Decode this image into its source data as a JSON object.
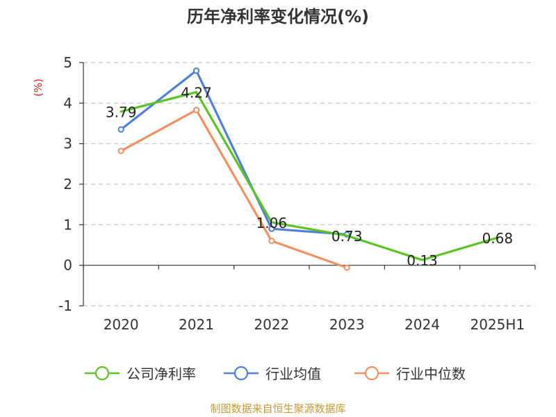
{
  "chart_data": {
    "type": "line",
    "title": "历年净利率变化情况(%)",
    "ylabel": "(%)",
    "xlabel": "",
    "categories": [
      "2020",
      "2021",
      "2022",
      "2023",
      "2024",
      "2025H1"
    ],
    "ylim": [
      -1,
      5
    ],
    "yticks": [
      -1,
      0,
      1,
      2,
      3,
      4,
      5
    ],
    "grid": true,
    "legend_position": "bottom",
    "series": [
      {
        "name": "公司净利率",
        "color": "#5cc422",
        "values": [
          3.79,
          4.27,
          1.06,
          0.73,
          0.13,
          0.68
        ],
        "labels": [
          "3.79",
          "4.27",
          "1.06",
          "0.73",
          "0.13",
          "0.68"
        ],
        "show_markers": false
      },
      {
        "name": "行业均值",
        "color": "#4f7fd9",
        "values": [
          3.35,
          4.8,
          0.9,
          0.76,
          null,
          null
        ],
        "show_markers": true
      },
      {
        "name": "行业中位数",
        "color": "#f39060",
        "values": [
          2.82,
          3.83,
          0.6,
          -0.06,
          null,
          null
        ],
        "show_markers": true
      }
    ]
  },
  "footer": {
    "source": "制图数据来自恒生聚源数据库"
  }
}
